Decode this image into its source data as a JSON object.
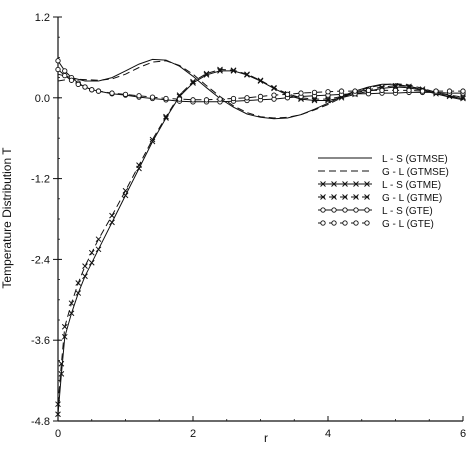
{
  "chart_data": {
    "type": "line",
    "title": "",
    "xlabel": "r",
    "ylabel": "Temperature Distribution T",
    "xlim": [
      0,
      6
    ],
    "ylim": [
      -4.8,
      1.2
    ],
    "xticks": [
      0,
      2,
      4,
      6
    ],
    "yticks": [
      1.2,
      0.0,
      -1.2,
      -2.4,
      -3.6,
      -4.8
    ],
    "ytick_labels": [
      "1.2",
      "0.0",
      "-1.2",
      "-2.4",
      "-3.6",
      "-4.8"
    ],
    "xtick_labels": [
      "0",
      "2",
      "4",
      "6"
    ],
    "grid": false,
    "legend_position": "right",
    "series": [
      {
        "name": "L - S (GTMSE)",
        "style": "solid",
        "marker": "none",
        "x": [
          0,
          0.2,
          0.4,
          0.6,
          0.8,
          1.0,
          1.2,
          1.4,
          1.6,
          1.8,
          2.0,
          2.2,
          2.4,
          2.6,
          2.8,
          3.0,
          3.2,
          3.4,
          3.6,
          3.8,
          4.0,
          4.2,
          4.4,
          4.6,
          4.8,
          5.0,
          5.2,
          5.4,
          5.6,
          5.8,
          6.0
        ],
        "y": [
          0.35,
          0.3,
          0.25,
          0.25,
          0.3,
          0.4,
          0.5,
          0.57,
          0.56,
          0.47,
          0.32,
          0.15,
          -0.01,
          -0.14,
          -0.24,
          -0.29,
          -0.31,
          -0.3,
          -0.25,
          -0.17,
          -0.08,
          0.02,
          0.1,
          0.16,
          0.2,
          0.2,
          0.17,
          0.12,
          0.06,
          0.01,
          -0.03
        ]
      },
      {
        "name": "G - L (GTMSE)",
        "style": "dashed",
        "marker": "none",
        "x": [
          0,
          0.2,
          0.4,
          0.6,
          0.8,
          1.0,
          1.2,
          1.4,
          1.6,
          1.8,
          2.0,
          2.2,
          2.4,
          2.6,
          2.8,
          3.0,
          3.2,
          3.4,
          3.6,
          3.8,
          4.0,
          4.2,
          4.4,
          4.6,
          4.8,
          5.0,
          5.2,
          5.4,
          5.6,
          5.8,
          6.0
        ],
        "y": [
          0.25,
          0.28,
          0.27,
          0.26,
          0.28,
          0.35,
          0.45,
          0.53,
          0.55,
          0.48,
          0.35,
          0.18,
          0.02,
          -0.12,
          -0.22,
          -0.28,
          -0.3,
          -0.29,
          -0.25,
          -0.18,
          -0.1,
          0.0,
          0.08,
          0.15,
          0.19,
          0.21,
          0.19,
          0.14,
          0.08,
          0.03,
          -0.01
        ]
      },
      {
        "name": "L - S (GTME)",
        "style": "solid",
        "marker": "x",
        "x": [
          0,
          0.05,
          0.1,
          0.2,
          0.3,
          0.4,
          0.5,
          0.6,
          0.8,
          1.0,
          1.2,
          1.4,
          1.6,
          1.8,
          2.0,
          2.2,
          2.4,
          2.6,
          2.8,
          3.0,
          3.2,
          3.4,
          3.6,
          3.8,
          4.0,
          4.2,
          4.4,
          4.6,
          4.8,
          5.0,
          5.2,
          5.4,
          5.6,
          5.8,
          6.0
        ],
        "y": [
          -4.7,
          -4.1,
          -3.55,
          -3.2,
          -2.9,
          -2.65,
          -2.45,
          -2.25,
          -1.85,
          -1.45,
          -1.05,
          -0.65,
          -0.3,
          0.02,
          0.22,
          0.34,
          0.4,
          0.4,
          0.34,
          0.25,
          0.14,
          0.04,
          -0.02,
          -0.04,
          -0.04,
          0.0,
          0.05,
          0.1,
          0.14,
          0.16,
          0.15,
          0.11,
          0.06,
          0.02,
          -0.01
        ]
      },
      {
        "name": "G - L (GTME)",
        "style": "dashed",
        "marker": "x",
        "x": [
          0,
          0.05,
          0.1,
          0.2,
          0.3,
          0.4,
          0.5,
          0.6,
          0.8,
          1.0,
          1.2,
          1.4,
          1.6,
          1.8,
          2.0,
          2.2,
          2.4,
          2.6,
          2.8,
          3.0,
          3.2,
          3.4,
          3.6,
          3.8,
          4.0,
          4.2,
          4.4,
          4.6,
          4.8,
          5.0,
          5.2,
          5.4,
          5.6,
          5.8,
          6.0
        ],
        "y": [
          -4.55,
          -3.95,
          -3.4,
          -3.05,
          -2.75,
          -2.5,
          -2.3,
          -2.1,
          -1.75,
          -1.38,
          -1.0,
          -0.62,
          -0.28,
          0.04,
          0.24,
          0.36,
          0.42,
          0.41,
          0.35,
          0.26,
          0.15,
          0.06,
          0.0,
          -0.02,
          -0.02,
          0.02,
          0.07,
          0.12,
          0.16,
          0.18,
          0.17,
          0.13,
          0.08,
          0.04,
          0.01
        ]
      },
      {
        "name": "L - S (GTE)",
        "style": "solid",
        "marker": "o",
        "x": [
          0,
          0.1,
          0.2,
          0.3,
          0.4,
          0.5,
          0.6,
          0.8,
          1.0,
          1.2,
          1.4,
          1.6,
          1.8,
          2.0,
          2.2,
          2.4,
          2.6,
          2.8,
          3.0,
          3.2,
          3.4,
          3.6,
          3.8,
          4.0,
          4.2,
          4.4,
          4.6,
          4.8,
          5.0,
          5.2,
          5.4,
          5.6,
          5.8,
          6.0
        ],
        "y": [
          0.55,
          0.4,
          0.3,
          0.22,
          0.16,
          0.12,
          0.1,
          0.06,
          0.04,
          0.01,
          -0.01,
          -0.03,
          -0.05,
          -0.06,
          -0.06,
          -0.06,
          -0.05,
          -0.04,
          -0.03,
          -0.02,
          0.0,
          0.02,
          0.03,
          0.04,
          0.05,
          0.06,
          0.06,
          0.07,
          0.07,
          0.08,
          0.08,
          0.08,
          0.07,
          0.07
        ]
      },
      {
        "name": "G - L (GTE)",
        "style": "dashed",
        "marker": "o",
        "x": [
          0,
          0.1,
          0.2,
          0.3,
          0.4,
          0.5,
          0.6,
          0.8,
          1.0,
          1.2,
          1.4,
          1.6,
          1.8,
          2.0,
          2.2,
          2.4,
          2.6,
          2.8,
          3.0,
          3.2,
          3.4,
          3.6,
          3.8,
          4.0,
          4.2,
          4.4,
          4.6,
          4.8,
          5.0,
          5.2,
          5.4,
          5.6,
          5.8,
          6.0
        ],
        "y": [
          0.42,
          0.33,
          0.26,
          0.2,
          0.16,
          0.12,
          0.1,
          0.07,
          0.05,
          0.03,
          0.01,
          -0.01,
          -0.02,
          -0.03,
          -0.03,
          -0.02,
          -0.01,
          0.0,
          0.02,
          0.04,
          0.05,
          0.07,
          0.08,
          0.09,
          0.1,
          0.1,
          0.11,
          0.11,
          0.11,
          0.11,
          0.1,
          0.1,
          0.1,
          0.1
        ]
      }
    ]
  }
}
